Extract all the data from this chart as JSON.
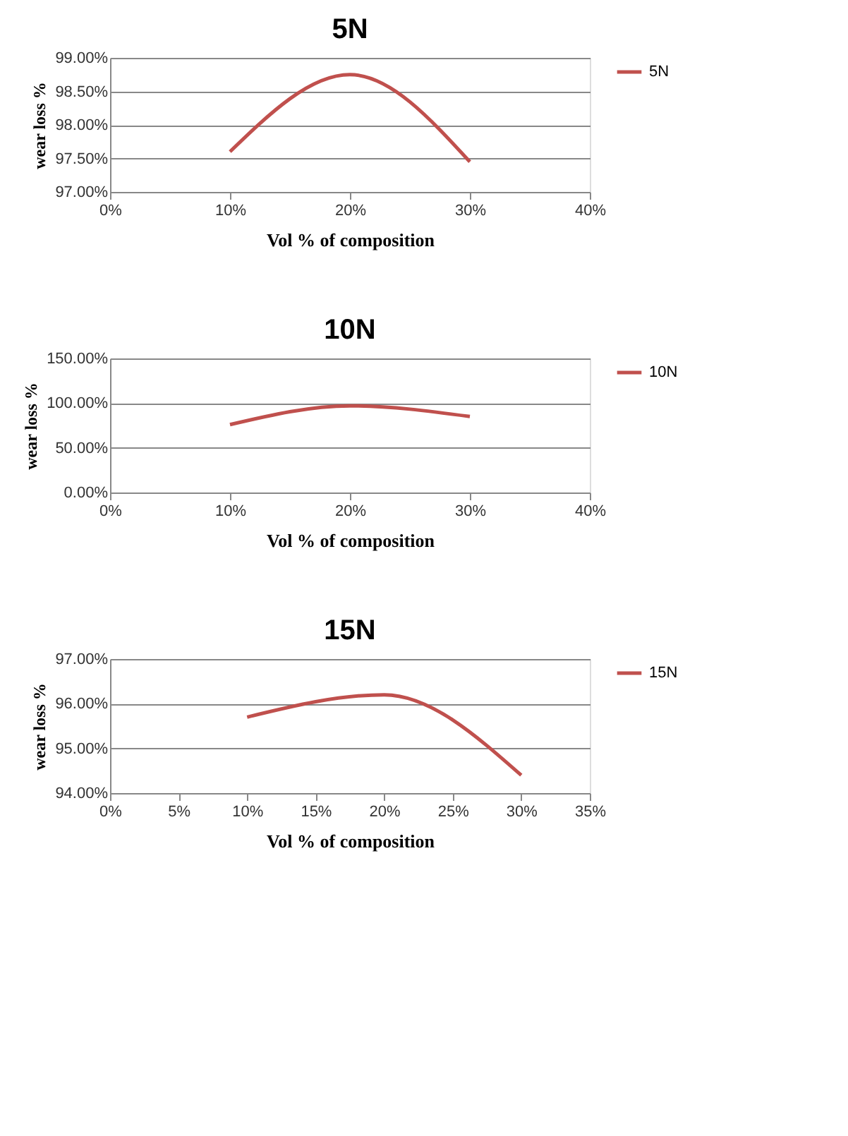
{
  "chart_data": [
    {
      "type": "line",
      "title": "5N",
      "xlabel": "Vol % of composition",
      "ylabel": "wear loss %",
      "x": [
        10,
        20,
        30
      ],
      "series": [
        {
          "name": "5N",
          "color": "#c0504d",
          "values": [
            97.6,
            98.75,
            97.45
          ]
        }
      ],
      "xlim": [
        0,
        40
      ],
      "xticks": [
        {
          "value": 0,
          "label": "0%"
        },
        {
          "value": 10,
          "label": "10%"
        },
        {
          "value": 20,
          "label": "20%"
        },
        {
          "value": 30,
          "label": "30%"
        },
        {
          "value": 40,
          "label": "40%"
        }
      ],
      "ylim": [
        97,
        99
      ],
      "yticks": [
        {
          "value": 97,
          "label": "97.00%"
        },
        {
          "value": 97.5,
          "label": "97.50%"
        },
        {
          "value": 98,
          "label": "98.00%"
        },
        {
          "value": 98.5,
          "label": "98.50%"
        },
        {
          "value": 99,
          "label": "99.00%"
        }
      ],
      "grid": "y",
      "legend": "right",
      "marker": "none",
      "line_style": "solid"
    },
    {
      "type": "line",
      "title": "10N",
      "xlabel": "Vol % of composition",
      "ylabel": "wear loss %",
      "x": [
        10,
        20,
        30
      ],
      "series": [
        {
          "name": "10N",
          "color": "#c0504d",
          "values": [
            76,
            97,
            85
          ]
        }
      ],
      "xlim": [
        0,
        40
      ],
      "xticks": [
        {
          "value": 0,
          "label": "0%"
        },
        {
          "value": 10,
          "label": "10%"
        },
        {
          "value": 20,
          "label": "20%"
        },
        {
          "value": 30,
          "label": "30%"
        },
        {
          "value": 40,
          "label": "40%"
        }
      ],
      "ylim": [
        0,
        150
      ],
      "yticks": [
        {
          "value": 0,
          "label": "0.00%"
        },
        {
          "value": 50,
          "label": "50.00%"
        },
        {
          "value": 100,
          "label": "100.00%"
        },
        {
          "value": 150,
          "label": "150.00%"
        }
      ],
      "grid": "y",
      "legend": "right",
      "marker": "none",
      "line_style": "solid"
    },
    {
      "type": "line",
      "title": "15N",
      "xlabel": "Vol % of composition",
      "ylabel": "wear loss %",
      "x": [
        10,
        20,
        30
      ],
      "series": [
        {
          "name": "15N",
          "color": "#c0504d",
          "values": [
            95.7,
            96.2,
            94.4
          ]
        }
      ],
      "xlim": [
        0,
        35
      ],
      "xticks": [
        {
          "value": 0,
          "label": "0%"
        },
        {
          "value": 5,
          "label": "5%"
        },
        {
          "value": 10,
          "label": "10%"
        },
        {
          "value": 15,
          "label": "15%"
        },
        {
          "value": 20,
          "label": "20%"
        },
        {
          "value": 25,
          "label": "25%"
        },
        {
          "value": 30,
          "label": "30%"
        },
        {
          "value": 35,
          "label": "35%"
        }
      ],
      "ylim": [
        94,
        97
      ],
      "yticks": [
        {
          "value": 94,
          "label": "94.00%"
        },
        {
          "value": 95,
          "label": "95.00%"
        },
        {
          "value": 96,
          "label": "96.00%"
        },
        {
          "value": 97,
          "label": "97.00%"
        }
      ],
      "grid": "y",
      "legend": "right",
      "marker": "none",
      "line_style": "solid"
    }
  ]
}
